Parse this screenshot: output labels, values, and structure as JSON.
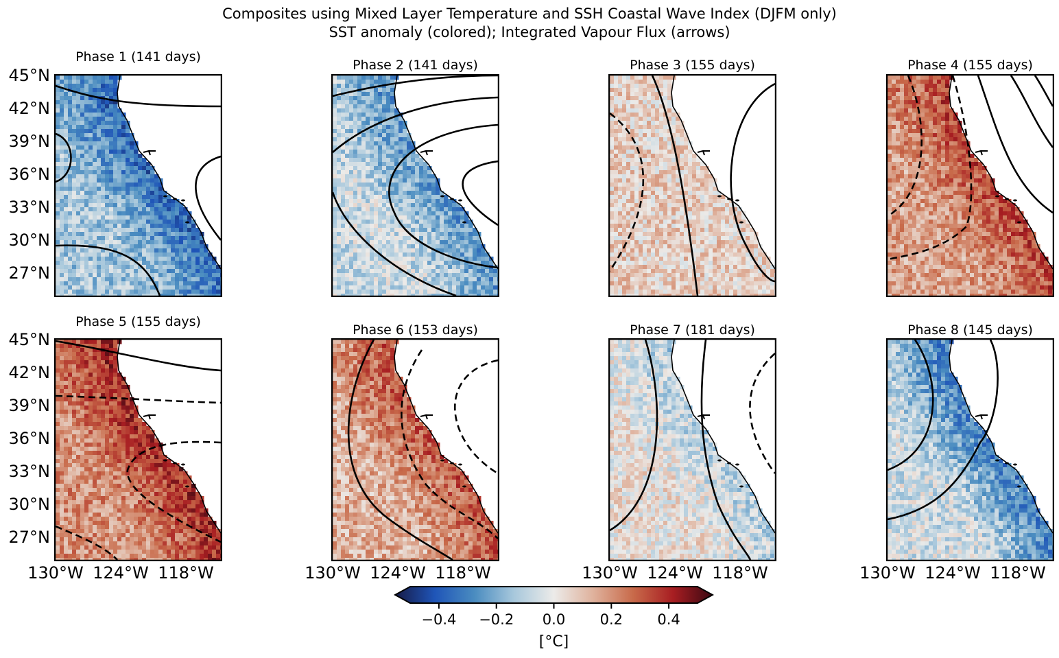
{
  "title": {
    "line1": "Composites using Mixed Layer Temperature and SSH Coastal Wave Index (DJFM only)",
    "line2": "SST anomaly (colored); Integrated Vapour Flux (arrows)"
  },
  "colorbar": {
    "ticks": [
      "−0.4",
      "−0.2",
      "0.0",
      "0.2",
      "0.4"
    ],
    "unit": "[°C]",
    "colors": {
      "neg_max": "#161a45",
      "neg_strong": "#1f55b8",
      "neg_mid": "#4a8cc0",
      "neg_weak": "#a8c8dc",
      "zero": "#ecebe9",
      "pos_weak": "#dfb19c",
      "pos_mid": "#c86a4a",
      "pos_strong": "#a81e22",
      "pos_max": "#3b0812"
    }
  },
  "axes": {
    "lat_labels": [
      "45°N",
      "42°N",
      "39°N",
      "36°N",
      "33°N",
      "30°N",
      "27°N"
    ],
    "lon_labels": [
      "130°W",
      "124°W",
      "118°W"
    ]
  },
  "chart_data": {
    "type": "heatmap",
    "description_units": "SST anomaly in °C",
    "color_range": [
      -0.5,
      0.5
    ],
    "panels": [
      {
        "title": "Phase 1 (141 days)",
        "phase": 1,
        "days": 141,
        "mean_anomaly": -0.12,
        "coastal_anomaly": -0.35
      },
      {
        "title": "Phase 2 (141 days)",
        "phase": 2,
        "days": 141,
        "mean_anomaly": -0.06,
        "coastal_anomaly": -0.25
      },
      {
        "title": "Phase 3 (155 days)",
        "phase": 3,
        "days": 155,
        "mean_anomaly": 0.06,
        "coastal_anomaly": 0.05
      },
      {
        "title": "Phase 4 (155 days)",
        "phase": 4,
        "days": 155,
        "mean_anomaly": 0.15,
        "coastal_anomaly": 0.32
      },
      {
        "title": "Phase 5 (155 days)",
        "phase": 5,
        "days": 155,
        "mean_anomaly": 0.18,
        "coastal_anomaly": 0.38
      },
      {
        "title": "Phase 6 (153 days)",
        "phase": 6,
        "days": 153,
        "mean_anomaly": 0.12,
        "coastal_anomaly": 0.3
      },
      {
        "title": "Phase 7 (181 days)",
        "phase": 7,
        "days": 181,
        "mean_anomaly": 0.02,
        "coastal_anomaly": -0.1
      },
      {
        "title": "Phase 8 (145 days)",
        "phase": 8,
        "days": 145,
        "mean_anomaly": -0.05,
        "coastal_anomaly": -0.3
      }
    ]
  }
}
